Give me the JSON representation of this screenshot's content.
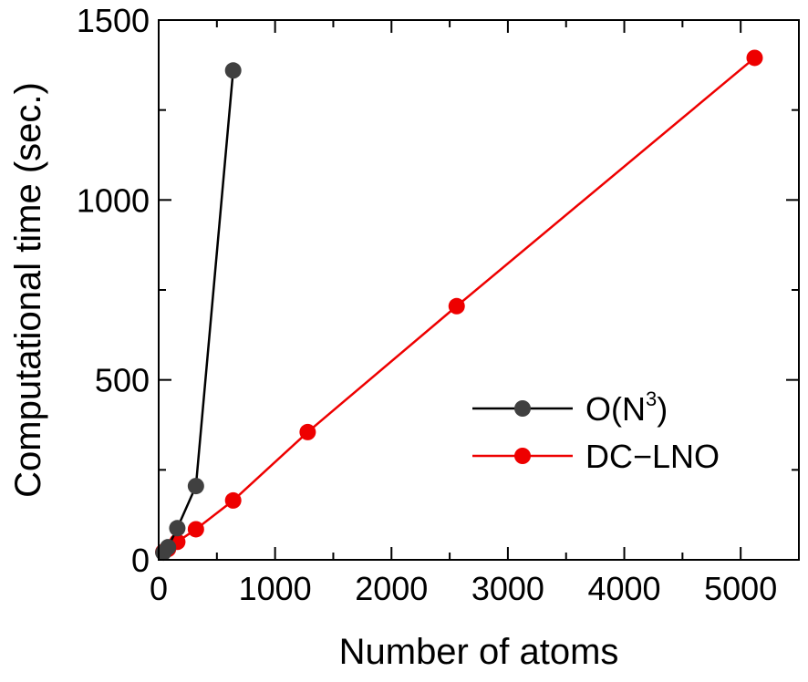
{
  "chart_data": {
    "type": "line",
    "title": "",
    "xlabel": "Number of atoms",
    "ylabel": "Computational time (sec.)",
    "xlim": [
      0,
      5500
    ],
    "ylim": [
      0,
      1500
    ],
    "xticks": [
      0,
      1000,
      2000,
      3000,
      4000,
      5000
    ],
    "yticks": [
      0,
      500,
      1000,
      1500
    ],
    "xtick_labels": [
      "0",
      "1000",
      "2000",
      "3000",
      "4000",
      "5000"
    ],
    "ytick_labels": [
      "0",
      "500",
      "1000",
      "1500"
    ],
    "grid": false,
    "legend_position": "center-right",
    "series": [
      {
        "name": "O(N3)",
        "label_base": "O(N",
        "label_sup": "3",
        "label_close": ")",
        "color": "#000000",
        "marker_color": "#404040",
        "x": [
          40,
          80,
          160,
          320,
          640
        ],
        "y": [
          20,
          35,
          88,
          205,
          1360
        ]
      },
      {
        "name": "DC-LNO",
        "label": "DC−LNO",
        "color": "#ee0000",
        "marker_color": "#ee0000",
        "x": [
          40,
          80,
          160,
          320,
          640,
          1280,
          2560,
          5120
        ],
        "y": [
          22,
          30,
          50,
          85,
          165,
          355,
          705,
          1395
        ]
      }
    ]
  }
}
